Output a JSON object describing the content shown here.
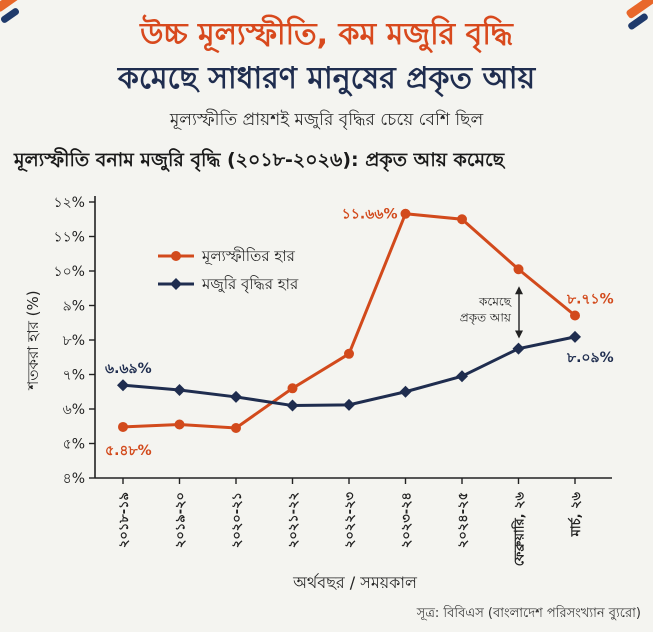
{
  "header": {
    "title_line1": "উচ্চ মূল্যস্ফীতি, কম মজুরি বৃদ্ধি",
    "title_line2": "কমেছে সাধারণ মানুষের প্রকৃত আয়",
    "subtitle": "মূল্যস্ফীতি প্রায়শই মজুরি বৃদ্ধির চেয়ে বেশি ছিল"
  },
  "source": "সূত্র: বিবিএস (বাংলাদেশ পরিসংখ্যান ব্যুরো)",
  "colors": {
    "inflation": "#d24a1c",
    "wage": "#1f2d4f",
    "title_accent": "#d8491d",
    "deco_orange": "#e8672a",
    "deco_navy": "#1f3a6b"
  },
  "chart_data": {
    "type": "line",
    "title": "মূল্যস্ফীতি বনাম মজুরি বৃদ্ধি (২০১৮-২০২৬): প্রকৃত আয় কমেছে",
    "xlabel": "অর্থবছর / সময়কাল",
    "ylabel": "শতকরা হার (%)",
    "ylim": [
      4,
      12
    ],
    "yticks": [
      "৪%",
      "৫%",
      "৬%",
      "৭%",
      "৮%",
      "৯%",
      "১০%",
      "১১%",
      "১২%"
    ],
    "categories": [
      "২০১৮-১৯",
      "২০১৯-২০",
      "২০২০-২১",
      "২০২১-২২",
      "২০২২-২৩",
      "২০২৩-২৪",
      "২০২৪-২৫",
      "ফেব্রুয়ারি, ২৬",
      "মার্চ, ২৬"
    ],
    "series": [
      {
        "name": "মূল্যস্ফীতির হার",
        "values": [
          5.48,
          5.55,
          5.45,
          6.6,
          7.6,
          11.66,
          11.5,
          10.05,
          8.71
        ]
      },
      {
        "name": "মজুরি বৃদ্ধির হার",
        "values": [
          6.69,
          6.55,
          6.35,
          6.1,
          6.12,
          6.5,
          6.95,
          7.75,
          8.09
        ]
      }
    ],
    "data_labels": {
      "inflation_first": "৫.৪৮%",
      "inflation_peak": "১১.৬৬%",
      "inflation_last": "৮.৭১%",
      "wage_first": "৬.৬৯%",
      "wage_last": "৮.০৯%"
    },
    "annotation": {
      "line1": "কমেছে",
      "line2": "প্রকৃত আয়"
    },
    "legend_position": "top-left",
    "grid": false
  }
}
